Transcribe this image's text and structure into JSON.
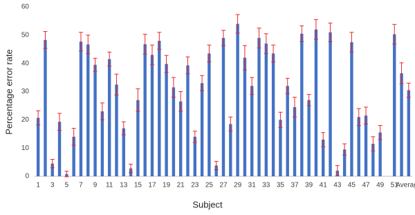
{
  "chart_data": {
    "type": "bar",
    "x_label": "Subject",
    "y_label": "Percentage error rate",
    "categories": [
      "1",
      null,
      "3",
      null,
      "5",
      null,
      "7",
      null,
      "9",
      null,
      "11",
      null,
      "13",
      null,
      "15",
      null,
      "17",
      null,
      "19",
      null,
      "21",
      null,
      "23",
      null,
      "25",
      null,
      "27",
      null,
      "29",
      null,
      "31",
      null,
      "33",
      null,
      "35",
      null,
      "37",
      null,
      "39",
      null,
      "41",
      null,
      "43",
      null,
      "45",
      null,
      "47",
      null,
      "49",
      null,
      "51",
      null,
      "Average"
    ],
    "values": [
      20.7,
      48.3,
      4.5,
      19.3,
      0.8,
      14,
      47.7,
      46.7,
      39.5,
      23,
      41.5,
      32.5,
      17,
      2.8,
      27,
      46.8,
      43,
      48,
      39.8,
      31.5,
      26.5,
      39.3,
      14,
      33,
      43.5,
      3.8,
      49,
      18.5,
      54,
      42,
      32,
      49,
      47,
      43.5,
      20,
      32,
      24.5,
      50.5,
      27,
      52,
      13,
      51,
      2,
      9.5,
      47.5,
      21,
      21.5,
      11.5,
      15.5,
      null,
      50.3,
      36.5,
      30.5
    ],
    "errors": [
      2.5,
      3,
      1.5,
      3,
      1,
      3,
      3.3,
      3.3,
      2.3,
      3,
      2.5,
      3.7,
      2.3,
      1.5,
      4,
      3.5,
      3.5,
      3,
      3,
      3.5,
      3.5,
      3,
      2,
      2.7,
      3,
      1.5,
      2.7,
      2.5,
      3.3,
      4.3,
      3,
      3.5,
      3.5,
      3,
      2.7,
      2.7,
      3.5,
      2.8,
      2,
      3.5,
      2.5,
      3.3,
      1.8,
      2,
      3.5,
      3,
      3,
      2.5,
      2.5,
      null,
      3.5,
      3.7,
      2.5
    ],
    "color": "#4472c4",
    "error_color": "#e8262a",
    "ylim": [
      0,
      60
    ],
    "yticks": [
      0,
      10,
      20,
      30,
      40,
      50,
      60
    ],
    "grid": false
  }
}
